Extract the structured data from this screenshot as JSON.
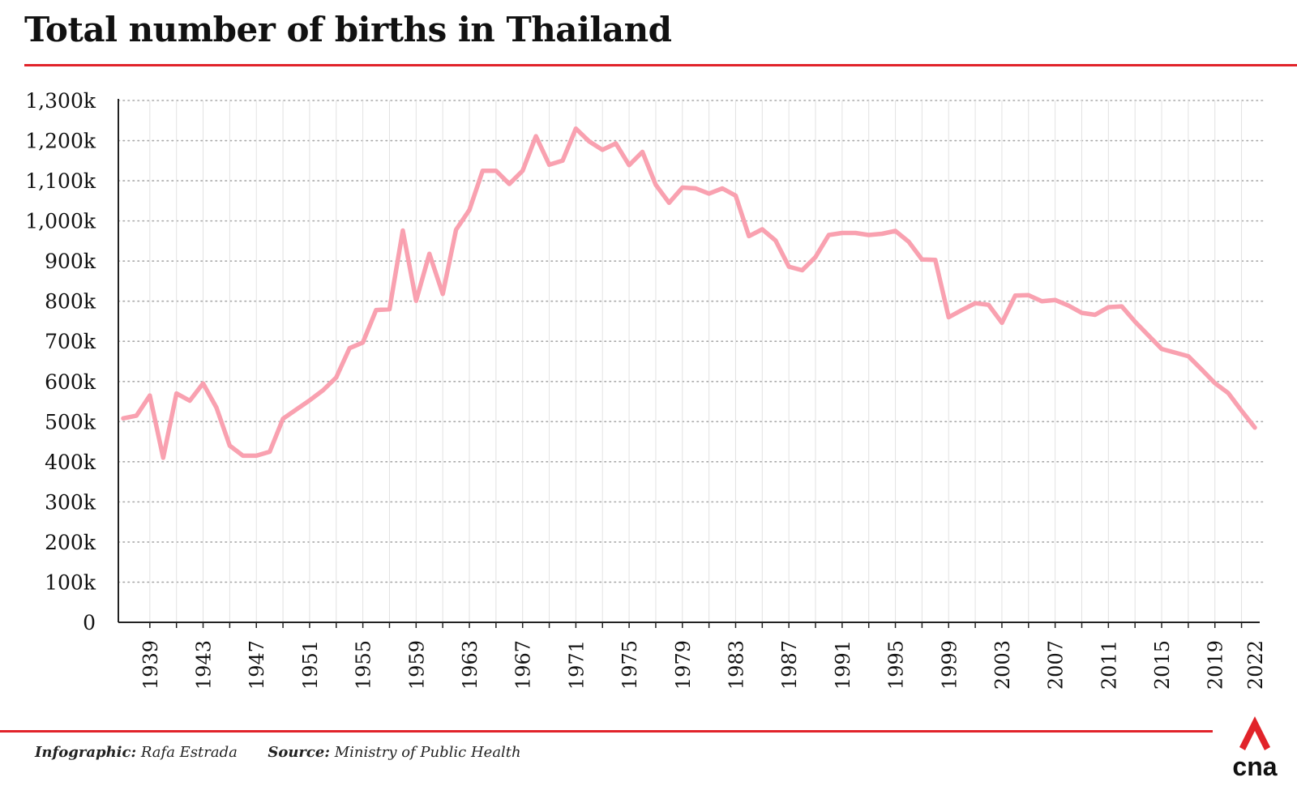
{
  "title": "Total number of births in Thailand",
  "credits": {
    "infographic_label": "Infographic:",
    "infographic_name": "Rafa Estrada",
    "source_label": "Source:",
    "source_name": "Ministry of Public Health"
  },
  "logo_text": "cna",
  "colors": {
    "line": "#f9a1b0",
    "accent": "#e1232a",
    "grid": "#b5b5b5"
  },
  "chart_data": {
    "type": "line",
    "title": "Total number of births in Thailand",
    "xlabel": "",
    "ylabel": "",
    "ylim": [
      0,
      1300
    ],
    "y_ticks": [
      0,
      100,
      200,
      300,
      400,
      500,
      600,
      700,
      800,
      900,
      1000,
      1100,
      1200,
      1300
    ],
    "y_tick_labels": [
      "0",
      "100k",
      "200k",
      "300k",
      "400k",
      "500k",
      "600k",
      "700k",
      "800k",
      "900k",
      "1,000k",
      "1,100k",
      "1,200k",
      "1,300k"
    ],
    "x_tick_labels": [
      "1939",
      "1943",
      "1947",
      "1951",
      "1955",
      "1959",
      "1963",
      "1967",
      "1971",
      "1975",
      "1979",
      "1983",
      "1987",
      "1991",
      "1995",
      "1999",
      "2003",
      "2007",
      "2011",
      "2015",
      "2019",
      "2022"
    ],
    "grid": true,
    "series": [
      {
        "x": [
          1937,
          1938,
          1939,
          1940,
          1941,
          1942,
          1943,
          1944,
          1945,
          1946,
          1947,
          1948,
          1949,
          1950,
          1951,
          1952,
          1953,
          1954,
          1955,
          1956,
          1957,
          1958,
          1959,
          1960,
          1961,
          1962,
          1963,
          1964,
          1965,
          1966,
          1967,
          1968,
          1969,
          1970,
          1971,
          1972,
          1973,
          1974,
          1975,
          1976,
          1977,
          1978,
          1979,
          1980,
          1981,
          1982,
          1983,
          1984,
          1985,
          1986,
          1987,
          1988,
          1989,
          1990,
          1991,
          1992,
          1993,
          1994,
          1995,
          1996,
          1997,
          1998,
          1999,
          2000,
          2001,
          2002,
          2003,
          2004,
          2005,
          2006,
          2007,
          2008,
          2009,
          2010,
          2011,
          2012,
          2013,
          2014,
          2015,
          2016,
          2017,
          2018,
          2019,
          2020,
          2021,
          2022
        ],
        "y": [
          508,
          515,
          565,
          410,
          570,
          552,
          595,
          535,
          440,
          415,
          415,
          425,
          507,
          530,
          553,
          578,
          610,
          683,
          697,
          778,
          780,
          976,
          801,
          918,
          818,
          978,
          1027,
          1125,
          1125,
          1092,
          1125,
          1211,
          1140,
          1150,
          1230,
          1198,
          1177,
          1193,
          1139,
          1172,
          1090,
          1045,
          1083,
          1081,
          1068,
          1081,
          1063,
          962,
          979,
          951,
          886,
          877,
          910,
          965,
          970,
          970,
          965,
          968,
          975,
          948,
          904,
          903,
          760,
          778,
          795,
          791,
          746,
          814,
          815,
          800,
          803,
          789,
          771,
          766,
          785,
          787,
          749,
          715,
          681,
          672,
          663,
          630,
          596,
          571,
          527,
          485
        ]
      }
    ]
  }
}
